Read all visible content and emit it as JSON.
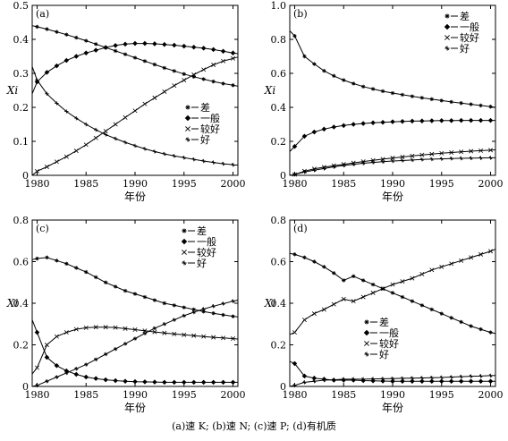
{
  "caption": "(a)速 K; (b)速 N; (c)速 P; (d)有机质",
  "legend_labels": [
    "差",
    "一般",
    "较好",
    "好"
  ],
  "chart_data": [
    {
      "type": "line",
      "panel_label": "(a)",
      "xlabel": "年份",
      "ylabel": "Xi",
      "xlim": [
        1979.5,
        2000.5
      ],
      "ylim": [
        0,
        0.5
      ],
      "xticks": [
        1980,
        1985,
        1990,
        1995,
        2000
      ],
      "yticks": [
        0,
        0.1,
        0.2,
        0.3,
        0.4,
        0.5
      ],
      "ytick_labels": [
        "0",
        "0.1",
        "0.2",
        "0.3",
        "0.4",
        "0.5"
      ],
      "legend_position": "center-right",
      "grid": false,
      "x": [
        1979.5,
        1980,
        1981,
        1982,
        1983,
        1984,
        1985,
        1986,
        1987,
        1988,
        1989,
        1990,
        1991,
        1992,
        1993,
        1994,
        1995,
        1996,
        1997,
        1998,
        1999,
        2000,
        2000.5
      ],
      "series": [
        {
          "name": "差",
          "marker": "asterisk",
          "values": [
            0.44,
            0.437,
            0.43,
            0.422,
            0.414,
            0.405,
            0.396,
            0.386,
            0.376,
            0.366,
            0.356,
            0.346,
            0.336,
            0.326,
            0.316,
            0.307,
            0.298,
            0.29,
            0.283,
            0.276,
            0.27,
            0.265,
            0.262
          ]
        },
        {
          "name": "一般",
          "marker": "diamond",
          "values": [
            0.24,
            0.275,
            0.303,
            0.322,
            0.338,
            0.35,
            0.36,
            0.368,
            0.376,
            0.382,
            0.386,
            0.388,
            0.388,
            0.387,
            0.385,
            0.383,
            0.38,
            0.377,
            0.374,
            0.37,
            0.365,
            0.36,
            0.358
          ]
        },
        {
          "name": "较好",
          "marker": "cross",
          "values": [
            0.0,
            0.012,
            0.025,
            0.04,
            0.055,
            0.072,
            0.09,
            0.11,
            0.13,
            0.15,
            0.17,
            0.19,
            0.21,
            0.228,
            0.246,
            0.264,
            0.28,
            0.296,
            0.311,
            0.325,
            0.336,
            0.344,
            0.348
          ]
        },
        {
          "name": "好",
          "marker": "star",
          "values": [
            0.32,
            0.28,
            0.24,
            0.212,
            0.188,
            0.168,
            0.15,
            0.134,
            0.12,
            0.108,
            0.097,
            0.087,
            0.078,
            0.07,
            0.063,
            0.057,
            0.052,
            0.047,
            0.042,
            0.038,
            0.034,
            0.031,
            0.03
          ]
        }
      ]
    },
    {
      "type": "line",
      "panel_label": "(b)",
      "xlabel": "年份",
      "ylabel": "Xi",
      "xlim": [
        1979.5,
        2000.5
      ],
      "ylim": [
        0,
        1.0
      ],
      "xticks": [
        1980,
        1985,
        1990,
        1995,
        2000
      ],
      "yticks": [
        0,
        0.2,
        0.4,
        0.6,
        0.8,
        1.0
      ],
      "ytick_labels": [
        "0",
        "0.2",
        "0.4",
        "0.6",
        "0.8",
        "1.0"
      ],
      "legend_position": "top-right",
      "grid": false,
      "x": [
        1979.5,
        1980,
        1981,
        1982,
        1983,
        1984,
        1985,
        1986,
        1987,
        1988,
        1989,
        1990,
        1991,
        1992,
        1993,
        1994,
        1995,
        1996,
        1997,
        1998,
        1999,
        2000,
        2000.5
      ],
      "series": [
        {
          "name": "差",
          "marker": "asterisk",
          "values": [
            0.85,
            0.82,
            0.7,
            0.655,
            0.615,
            0.585,
            0.56,
            0.54,
            0.522,
            0.508,
            0.495,
            0.484,
            0.474,
            0.465,
            0.456,
            0.448,
            0.44,
            0.432,
            0.425,
            0.418,
            0.411,
            0.404,
            0.4
          ]
        },
        {
          "name": "一般",
          "marker": "diamond",
          "values": [
            0.14,
            0.17,
            0.23,
            0.255,
            0.272,
            0.284,
            0.293,
            0.3,
            0.305,
            0.309,
            0.312,
            0.315,
            0.317,
            0.319,
            0.32,
            0.321,
            0.322,
            0.322,
            0.323,
            0.323,
            0.323,
            0.323,
            0.323
          ]
        },
        {
          "name": "较好",
          "marker": "cross",
          "values": [
            0.0,
            0.005,
            0.025,
            0.038,
            0.048,
            0.057,
            0.065,
            0.073,
            0.081,
            0.088,
            0.095,
            0.102,
            0.108,
            0.114,
            0.12,
            0.125,
            0.13,
            0.134,
            0.138,
            0.142,
            0.145,
            0.148,
            0.15
          ]
        },
        {
          "name": "好",
          "marker": "star",
          "values": [
            0.0,
            0.005,
            0.02,
            0.03,
            0.04,
            0.05,
            0.058,
            0.065,
            0.071,
            0.076,
            0.08,
            0.084,
            0.087,
            0.09,
            0.093,
            0.095,
            0.097,
            0.099,
            0.1,
            0.101,
            0.102,
            0.103,
            0.103
          ]
        }
      ]
    },
    {
      "type": "line",
      "panel_label": "(c)",
      "xlabel": "年份",
      "ylabel": "Xi",
      "xlim": [
        1979.5,
        2000.5
      ],
      "ylim": [
        0,
        0.8
      ],
      "xticks": [
        1980,
        1985,
        1990,
        1995,
        2000
      ],
      "yticks": [
        0,
        0.2,
        0.4,
        0.6,
        0.8
      ],
      "ytick_labels": [
        "0",
        "0.2",
        "0.4",
        "0.6",
        "0.8"
      ],
      "legend_position": "top-right",
      "grid": false,
      "x": [
        1979.5,
        1980,
        1981,
        1982,
        1983,
        1984,
        1985,
        1986,
        1987,
        1988,
        1989,
        1990,
        1991,
        1992,
        1993,
        1994,
        1995,
        1996,
        1997,
        1998,
        1999,
        2000,
        2000.5
      ],
      "series": [
        {
          "name": "差",
          "marker": "asterisk",
          "values": [
            0.61,
            0.615,
            0.62,
            0.605,
            0.59,
            0.57,
            0.55,
            0.525,
            0.5,
            0.48,
            0.46,
            0.445,
            0.43,
            0.415,
            0.4,
            0.39,
            0.38,
            0.37,
            0.36,
            0.352,
            0.344,
            0.337,
            0.334
          ]
        },
        {
          "name": "一般",
          "marker": "diamond",
          "values": [
            0.32,
            0.26,
            0.14,
            0.1,
            0.075,
            0.058,
            0.045,
            0.038,
            0.032,
            0.028,
            0.025,
            0.023,
            0.022,
            0.021,
            0.02,
            0.02,
            0.02,
            0.02,
            0.02,
            0.02,
            0.02,
            0.02,
            0.02
          ]
        },
        {
          "name": "较好",
          "marker": "cross",
          "values": [
            0.06,
            0.09,
            0.2,
            0.24,
            0.26,
            0.275,
            0.282,
            0.285,
            0.285,
            0.283,
            0.278,
            0.273,
            0.268,
            0.262,
            0.257,
            0.252,
            0.248,
            0.244,
            0.24,
            0.236,
            0.233,
            0.23,
            0.228
          ]
        },
        {
          "name": "好",
          "marker": "star",
          "values": [
            0.0,
            0.005,
            0.025,
            0.045,
            0.065,
            0.085,
            0.105,
            0.13,
            0.155,
            0.18,
            0.205,
            0.23,
            0.255,
            0.28,
            0.3,
            0.32,
            0.34,
            0.357,
            0.372,
            0.386,
            0.398,
            0.41,
            0.415
          ]
        }
      ]
    },
    {
      "type": "line",
      "panel_label": "(d)",
      "xlabel": "年份",
      "ylabel": "Xi",
      "xlim": [
        1979.5,
        2000.5
      ],
      "ylim": [
        0,
        0.8
      ],
      "xticks": [
        1980,
        1985,
        1990,
        1995,
        2000
      ],
      "yticks": [
        0,
        0.2,
        0.4,
        0.6,
        0.8
      ],
      "ytick_labels": [
        "0",
        "0.2",
        "0.4",
        "0.6",
        "0.8"
      ],
      "legend_position": "bottom-center",
      "grid": false,
      "x": [
        1979.5,
        1980,
        1981,
        1982,
        1983,
        1984,
        1985,
        1986,
        1987,
        1988,
        1989,
        1990,
        1991,
        1992,
        1993,
        1994,
        1995,
        1996,
        1997,
        1998,
        1999,
        2000,
        2000.5
      ],
      "series": [
        {
          "name": "差",
          "marker": "asterisk",
          "values": [
            0.64,
            0.635,
            0.62,
            0.6,
            0.575,
            0.545,
            0.51,
            0.53,
            0.51,
            0.49,
            0.47,
            0.45,
            0.43,
            0.41,
            0.39,
            0.37,
            0.35,
            0.33,
            0.31,
            0.29,
            0.275,
            0.26,
            0.255
          ]
        },
        {
          "name": "一般",
          "marker": "diamond",
          "values": [
            0.12,
            0.11,
            0.05,
            0.04,
            0.035,
            0.03,
            0.03,
            0.03,
            0.028,
            0.027,
            0.026,
            0.025,
            0.025,
            0.025,
            0.025,
            0.025,
            0.025,
            0.025,
            0.025,
            0.025,
            0.025,
            0.025,
            0.025
          ]
        },
        {
          "name": "较好",
          "marker": "cross",
          "values": [
            0.25,
            0.26,
            0.32,
            0.35,
            0.37,
            0.395,
            0.42,
            0.41,
            0.43,
            0.45,
            0.47,
            0.49,
            0.505,
            0.52,
            0.54,
            0.56,
            0.575,
            0.59,
            0.605,
            0.62,
            0.635,
            0.65,
            0.66
          ]
        },
        {
          "name": "好",
          "marker": "star",
          "values": [
            0.0,
            0.005,
            0.02,
            0.025,
            0.03,
            0.032,
            0.035,
            0.035,
            0.035,
            0.036,
            0.037,
            0.038,
            0.039,
            0.04,
            0.041,
            0.042,
            0.043,
            0.045,
            0.047,
            0.049,
            0.05,
            0.052,
            0.053
          ]
        }
      ]
    }
  ]
}
